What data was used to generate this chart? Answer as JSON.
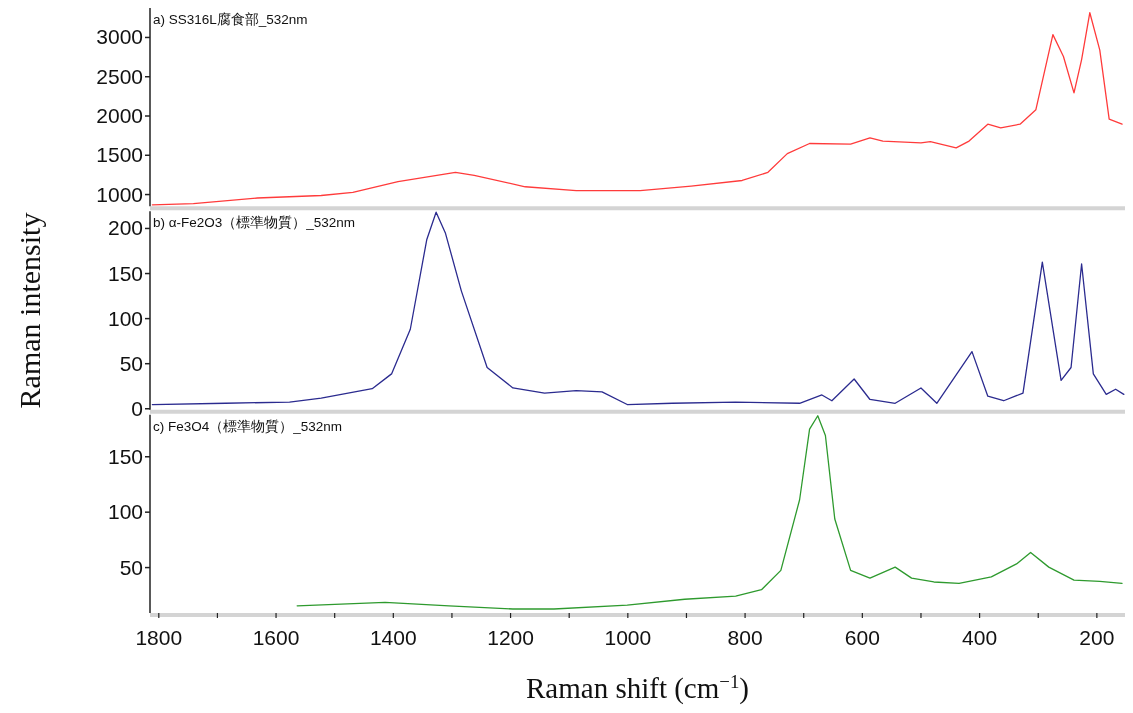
{
  "chart_data": [
    {
      "type": "line",
      "annotations": [
        "a) SS316L腐食部_532nm"
      ],
      "xlim": [
        1815,
        152
      ],
      "ylim": [
        850,
        3375
      ],
      "yticks": [
        1000,
        1500,
        2000,
        2500,
        3000
      ],
      "tick_labels": "y",
      "x": [
        1811,
        1741,
        1632,
        1523,
        1469,
        1392,
        1294,
        1262,
        1175,
        1088,
        979,
        892,
        805,
        761,
        728,
        690,
        620,
        587,
        565,
        500,
        484,
        440,
        418,
        386,
        364,
        331,
        304,
        275,
        257,
        239,
        226,
        212,
        195,
        179,
        157
      ],
      "series": [
        {
          "color": "#ff3b3b",
          "values": [
            869,
            884,
            956,
            988,
            1028,
            1164,
            1283,
            1243,
            1099,
            1051,
            1051,
            1108,
            1179,
            1283,
            1521,
            1650,
            1641,
            1721,
            1681,
            1658,
            1674,
            1594,
            1681,
            1896,
            1849,
            1896,
            2080,
            3036,
            2758,
            2295,
            2718,
            3315,
            2838,
            1960,
            1896
          ]
        }
      ]
    },
    {
      "type": "line",
      "annotations": [
        "b) α-Fe2O3（標準物質）_532nm"
      ],
      "ylabel": "Raman intensity",
      "xlim": [
        1815,
        152
      ],
      "ylim": [
        -1,
        219
      ],
      "yticks": [
        0,
        50,
        100,
        150,
        200
      ],
      "tick_labels": "y",
      "x": [
        1811,
        1686,
        1577,
        1523,
        1436,
        1403,
        1371,
        1343,
        1327,
        1311,
        1284,
        1240,
        1196,
        1142,
        1088,
        1044,
        1001,
        924,
        816,
        707,
        669,
        652,
        614,
        587,
        544,
        500,
        473,
        413,
        386,
        359,
        326,
        293,
        261,
        244,
        226,
        206,
        184,
        168,
        154
      ],
      "series": [
        {
          "color": "#2b2b8f",
          "values": [
            4.7,
            6.1,
            7.4,
            11.8,
            22.3,
            38.7,
            88.2,
            187.4,
            218,
            194.6,
            130.8,
            45.8,
            23.1,
            17.4,
            20.2,
            18.8,
            4.7,
            6.1,
            7.4,
            6.1,
            15.3,
            8.9,
            33,
            10.3,
            6.1,
            23.1,
            6.1,
            63.4,
            13.9,
            8.9,
            17.4,
            162.7,
            31.6,
            45.8,
            160.6,
            38.7,
            16,
            21.7,
            16
          ]
        }
      ]
    },
    {
      "type": "line",
      "annotations": [
        "c) Fe3O4（標準物質）_532nm"
      ],
      "xlabel": "Raman shift (cm$^{−1}$)",
      "xlim": [
        1815,
        152
      ],
      "ylim": [
        9,
        188
      ],
      "yticks": [
        50,
        100,
        150
      ],
      "xticks": [
        1800,
        {
          "value": 1700,
          "label": null
        },
        1600,
        {
          "value": 1500,
          "label": null
        },
        1400,
        {
          "value": 1300,
          "label": null
        },
        1200,
        {
          "value": 1100,
          "label": null
        },
        1000,
        {
          "value": 900,
          "label": null
        },
        800,
        {
          "value": 700,
          "label": null
        },
        600,
        {
          "value": 500,
          "label": null
        },
        400,
        {
          "value": 300,
          "label": null
        },
        200
      ],
      "x": [
        1564,
        1414,
        1305,
        1196,
        1126,
        1001,
        903,
        816,
        772,
        739,
        707,
        690,
        676,
        663,
        647,
        620,
        587,
        544,
        516,
        478,
        435,
        380,
        337,
        313,
        282,
        239,
        195,
        157
      ],
      "series": [
        {
          "color": "#2e9a2e",
          "values": [
            15.5,
            18.5,
            15.5,
            12.6,
            12.6,
            16.1,
            21.4,
            24.3,
            30,
            47.5,
            111.2,
            175,
            187,
            169.2,
            93.8,
            47.5,
            40.5,
            50.4,
            40.5,
            37,
            35.8,
            41.6,
            53.3,
            63.6,
            50.4,
            38.7,
            37.5,
            35.8
          ]
        }
      ]
    }
  ]
}
